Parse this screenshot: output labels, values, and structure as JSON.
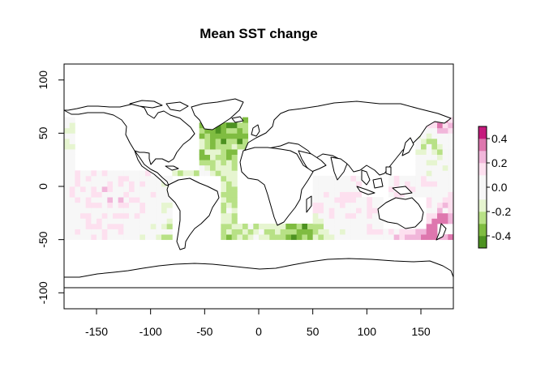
{
  "chart_data": {
    "type": "heatmap",
    "title": "Mean SST change",
    "xlabel": "",
    "ylabel": "",
    "xlim": [
      -180,
      180
    ],
    "ylim": [
      -115,
      115
    ],
    "x_ticks": [
      -150,
      -100,
      -50,
      0,
      50,
      100,
      150
    ],
    "y_ticks": [
      100,
      50,
      0,
      -50,
      -100
    ],
    "grid": false,
    "legend": {
      "placement": "right",
      "ticks": [
        0.4,
        0.2,
        0.0,
        -0.2,
        -0.4
      ],
      "tick_labels": [
        "0.4",
        "0.2",
        "0.0",
        "-0.2",
        "-0.4"
      ],
      "min": -0.5,
      "max": 0.5,
      "bin_width": 0.1,
      "colors": [
        "#4d9221",
        "#7fbc41",
        "#b8e186",
        "#e6f5d0",
        "#f7f7f7",
        "#f7f7f7",
        "#fde0ef",
        "#f1b6da",
        "#de77ae",
        "#c51b7d"
      ]
    },
    "grid_cell_degrees": 5,
    "data_lat_range": [
      -50,
      65
    ],
    "sample_cells": [
      {
        "lon": -140,
        "lat": 0,
        "value": 0.12
      },
      {
        "lon": -130,
        "lat": -10,
        "value": 0.15
      },
      {
        "lon": -170,
        "lat": 40,
        "value": -0.12
      },
      {
        "lon": -30,
        "lat": 60,
        "value": -0.45
      },
      {
        "lon": 0,
        "lat": -45,
        "value": -0.12
      },
      {
        "lon": 40,
        "lat": -42,
        "value": -0.45
      },
      {
        "lon": 60,
        "lat": -20,
        "value": 0.12
      },
      {
        "lon": 110,
        "lat": -20,
        "value": 0.12
      },
      {
        "lon": 170,
        "lat": -50,
        "value": 0.4
      },
      {
        "lon": 170,
        "lat": 60,
        "value": 0.35
      },
      {
        "lon": 160,
        "lat": 40,
        "value": -0.25
      },
      {
        "lon": -40,
        "lat": -50,
        "value": -0.35
      }
    ]
  }
}
